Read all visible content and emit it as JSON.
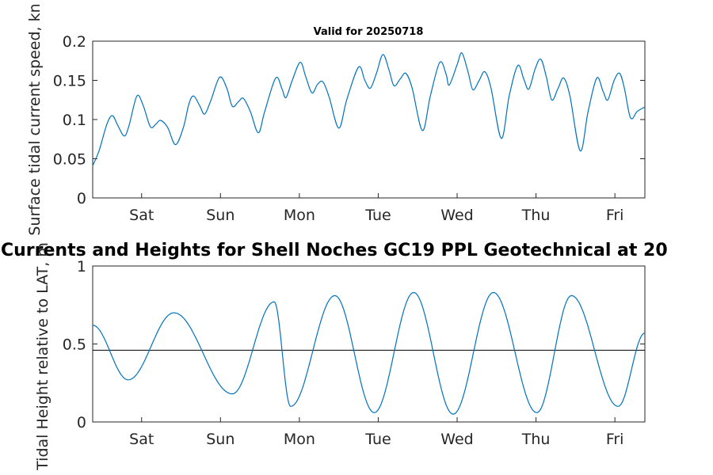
{
  "chart_data": [
    {
      "type": "line",
      "title": "Valid for 20250718",
      "ylabel": "Surface tidal current speed, kn",
      "xlabel": "",
      "xlim": [
        0,
        7
      ],
      "ylim": [
        0,
        0.2
      ],
      "yticks": [
        {
          "value": 0,
          "label": "0"
        },
        {
          "value": 0.05,
          "label": "0.05"
        },
        {
          "value": 0.1,
          "label": "0.1"
        },
        {
          "value": 0.15,
          "label": "0.15"
        },
        {
          "value": 0.2,
          "label": "0.2"
        }
      ],
      "xticks": [
        {
          "value": 0.62,
          "label": "Sat"
        },
        {
          "value": 1.62,
          "label": "Sun"
        },
        {
          "value": 2.62,
          "label": "Mon"
        },
        {
          "value": 3.62,
          "label": "Tue"
        },
        {
          "value": 4.62,
          "label": "Wed"
        },
        {
          "value": 5.62,
          "label": "Thu"
        },
        {
          "value": 6.62,
          "label": "Fri"
        }
      ],
      "grid": false,
      "series": [
        {
          "color": "#0072BD",
          "points": [
            [
              0.0,
              0.041
            ],
            [
              0.08,
              0.06
            ],
            [
              0.18,
              0.094
            ],
            [
              0.25,
              0.105
            ],
            [
              0.32,
              0.092
            ],
            [
              0.4,
              0.079
            ],
            [
              0.46,
              0.092
            ],
            [
              0.56,
              0.13
            ],
            [
              0.64,
              0.118
            ],
            [
              0.73,
              0.091
            ],
            [
              0.8,
              0.094
            ],
            [
              0.86,
              0.099
            ],
            [
              0.95,
              0.09
            ],
            [
              1.05,
              0.068
            ],
            [
              1.15,
              0.09
            ],
            [
              1.22,
              0.12
            ],
            [
              1.28,
              0.13
            ],
            [
              1.36,
              0.117
            ],
            [
              1.42,
              0.107
            ],
            [
              1.5,
              0.125
            ],
            [
              1.61,
              0.154
            ],
            [
              1.7,
              0.14
            ],
            [
              1.77,
              0.117
            ],
            [
              1.85,
              0.123
            ],
            [
              1.91,
              0.127
            ],
            [
              2.0,
              0.11
            ],
            [
              2.1,
              0.083
            ],
            [
              2.18,
              0.11
            ],
            [
              2.32,
              0.153
            ],
            [
              2.4,
              0.139
            ],
            [
              2.45,
              0.128
            ],
            [
              2.53,
              0.15
            ],
            [
              2.63,
              0.173
            ],
            [
              2.7,
              0.155
            ],
            [
              2.78,
              0.134
            ],
            [
              2.85,
              0.145
            ],
            [
              2.92,
              0.148
            ],
            [
              3.0,
              0.128
            ],
            [
              3.12,
              0.089
            ],
            [
              3.22,
              0.125
            ],
            [
              3.37,
              0.167
            ],
            [
              3.45,
              0.15
            ],
            [
              3.52,
              0.14
            ],
            [
              3.6,
              0.16
            ],
            [
              3.68,
              0.183
            ],
            [
              3.76,
              0.162
            ],
            [
              3.82,
              0.143
            ],
            [
              3.9,
              0.152
            ],
            [
              3.97,
              0.159
            ],
            [
              4.05,
              0.14
            ],
            [
              4.18,
              0.086
            ],
            [
              4.28,
              0.13
            ],
            [
              4.4,
              0.173
            ],
            [
              4.48,
              0.158
            ],
            [
              4.52,
              0.144
            ],
            [
              4.62,
              0.17
            ],
            [
              4.68,
              0.185
            ],
            [
              4.76,
              0.16
            ],
            [
              4.82,
              0.138
            ],
            [
              4.9,
              0.15
            ],
            [
              4.97,
              0.161
            ],
            [
              5.05,
              0.14
            ],
            [
              5.18,
              0.076
            ],
            [
              5.28,
              0.13
            ],
            [
              5.39,
              0.169
            ],
            [
              5.47,
              0.15
            ],
            [
              5.53,
              0.139
            ],
            [
              5.61,
              0.165
            ],
            [
              5.68,
              0.177
            ],
            [
              5.75,
              0.155
            ],
            [
              5.82,
              0.125
            ],
            [
              5.9,
              0.14
            ],
            [
              5.97,
              0.153
            ],
            [
              6.05,
              0.13
            ],
            [
              6.18,
              0.06
            ],
            [
              6.28,
              0.11
            ],
            [
              6.39,
              0.153
            ],
            [
              6.47,
              0.136
            ],
            [
              6.53,
              0.125
            ],
            [
              6.61,
              0.15
            ],
            [
              6.68,
              0.159
            ],
            [
              6.74,
              0.14
            ],
            [
              6.8,
              0.108
            ],
            [
              6.84,
              0.101
            ],
            [
              6.9,
              0.11
            ],
            [
              7.0,
              0.116
            ]
          ]
        }
      ]
    },
    {
      "type": "line",
      "title": "Currents and Heights for Shell Noches   GC19 PPL  Geotechnical at 20",
      "ylabel": "Tidal Height relative to LAT, m",
      "xlabel": "",
      "xlim": [
        0,
        7
      ],
      "ylim": [
        0,
        1
      ],
      "yticks": [
        {
          "value": 0,
          "label": "0"
        },
        {
          "value": 0.5,
          "label": "0.5"
        },
        {
          "value": 1,
          "label": "1"
        }
      ],
      "xticks": [
        {
          "value": 0.62,
          "label": "Sat"
        },
        {
          "value": 1.62,
          "label": "Sun"
        },
        {
          "value": 2.62,
          "label": "Mon"
        },
        {
          "value": 3.62,
          "label": "Tue"
        },
        {
          "value": 4.62,
          "label": "Wed"
        },
        {
          "value": 5.62,
          "label": "Thu"
        },
        {
          "value": 6.62,
          "label": "Fri"
        }
      ],
      "grid": false,
      "reference_line": {
        "y": 0.46,
        "color": "#000000"
      },
      "series": [
        {
          "color": "#0072BD",
          "extrema": [
            [
              0.0,
              0.62
            ],
            [
              0.45,
              0.27
            ],
            [
              1.03,
              0.7
            ],
            [
              1.77,
              0.18
            ],
            [
              2.3,
              0.77
            ],
            [
              2.51,
              0.1
            ],
            [
              3.07,
              0.81
            ],
            [
              3.57,
              0.06
            ],
            [
              4.07,
              0.83
            ],
            [
              4.57,
              0.05
            ],
            [
              5.08,
              0.83
            ],
            [
              5.63,
              0.06
            ],
            [
              6.07,
              0.81
            ],
            [
              6.66,
              0.1
            ],
            [
              7.0,
              0.57
            ]
          ]
        }
      ]
    }
  ]
}
